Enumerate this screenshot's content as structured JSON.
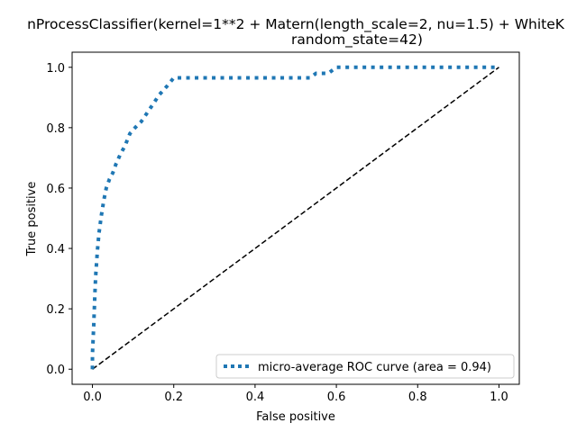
{
  "chart_data": {
    "type": "line",
    "title_line1": "nProcessClassifier(kernel=1**2 + Matern(length_scale=2, nu=1.5) + WhiteK",
    "title_line2": "random_state=42)",
    "xlabel": "False positive",
    "ylabel": "True positive",
    "xlim": [
      -0.05,
      1.05
    ],
    "ylim": [
      -0.05,
      1.05
    ],
    "xticks": [
      "0.0",
      "0.2",
      "0.4",
      "0.6",
      "0.8",
      "1.0"
    ],
    "yticks": [
      "0.0",
      "0.2",
      "0.4",
      "0.6",
      "0.8",
      "1.0"
    ],
    "grid": false,
    "legend_position": "lower-right",
    "series": [
      {
        "name": "micro-average ROC curve (area = 0.94)",
        "style": "dotted",
        "color": "#1f77b4",
        "x": [
          0.0,
          0.0,
          0.003,
          0.006,
          0.008,
          0.012,
          0.016,
          0.022,
          0.028,
          0.034,
          0.042,
          0.05,
          0.058,
          0.068,
          0.08,
          0.092,
          0.105,
          0.12,
          0.135,
          0.15,
          0.165,
          0.185,
          0.2,
          0.25,
          0.3,
          0.35,
          0.4,
          0.45,
          0.5,
          0.535,
          0.55,
          0.58,
          0.6,
          0.65,
          0.7,
          0.75,
          0.8,
          0.85,
          0.9,
          0.95,
          1.0
        ],
        "y": [
          0.0,
          0.05,
          0.14,
          0.25,
          0.31,
          0.39,
          0.45,
          0.51,
          0.56,
          0.6,
          0.63,
          0.65,
          0.68,
          0.71,
          0.74,
          0.78,
          0.8,
          0.82,
          0.85,
          0.88,
          0.91,
          0.94,
          0.965,
          0.965,
          0.965,
          0.965,
          0.965,
          0.965,
          0.965,
          0.965,
          0.98,
          0.98,
          1.0,
          1.0,
          1.0,
          1.0,
          1.0,
          1.0,
          1.0,
          1.0,
          1.0
        ]
      },
      {
        "name": "",
        "style": "dashed",
        "color": "#000000",
        "x": [
          0.0,
          1.0
        ],
        "y": [
          0.0,
          1.0
        ]
      }
    ]
  }
}
